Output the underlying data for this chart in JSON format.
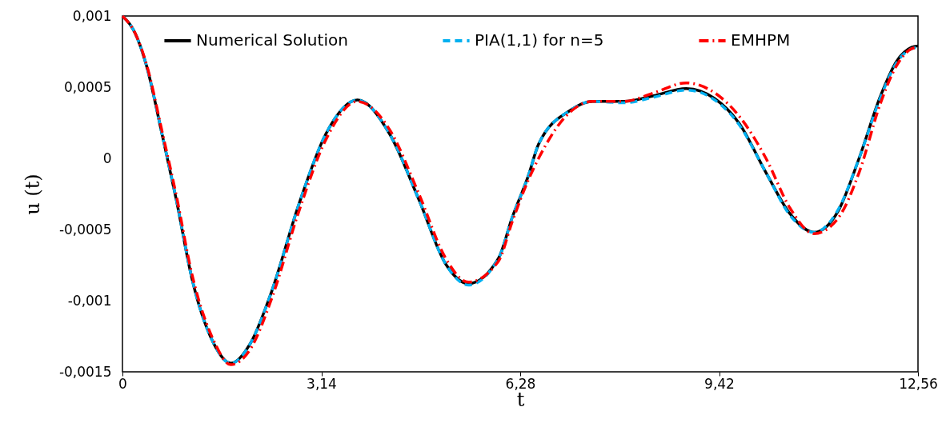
{
  "chart_data": {
    "type": "line",
    "xlabel": "t",
    "ylabel": "u (t)",
    "x": [
      0,
      0.21,
      0.38,
      0.63,
      0.85,
      1.1,
      1.44,
      1.71,
      2.02,
      2.36,
      2.78,
      3.21,
      3.71,
      4.22,
      4.68,
      5.1,
      5.46,
      5.94,
      6.15,
      6.41,
      6.57,
      7.08,
      7.42,
      7.92,
      8.39,
      8.9,
      9.35,
      9.73,
      10.16,
      10.54,
      10.92,
      11.3,
      11.63,
      11.97,
      12.22,
      12.46,
      12.56
    ],
    "series": [
      {
        "name": "Numerical Solution",
        "color": "#000000",
        "line_style": "solid",
        "values": [
          0.001,
          0.00087,
          0.00065,
          0.00016,
          -0.00029,
          -0.00085,
          -0.0013,
          -0.00144,
          -0.0013,
          -0.00093,
          -0.00033,
          0.00017,
          0.00041,
          0.00017,
          -0.00029,
          -0.00074,
          -0.00088,
          -0.0007,
          -0.00042,
          -0.00012,
          0.0001,
          0.00034,
          0.0004,
          0.0004,
          0.00044,
          0.00049,
          0.00042,
          0.00025,
          -0.0001,
          -0.00039,
          -0.00052,
          -0.00037,
          0.0,
          0.00044,
          0.00068,
          0.00078,
          0.00079
        ]
      },
      {
        "name": "PIA(1,1) for n=5",
        "color": "#00b0f0",
        "line_style": "dashed",
        "values": [
          0.001,
          0.00087,
          0.00065,
          0.00016,
          -0.00029,
          -0.00085,
          -0.0013,
          -0.00144,
          -0.0013,
          -0.00093,
          -0.00033,
          0.00017,
          0.00041,
          0.00017,
          -0.00029,
          -0.00074,
          -0.00089,
          -0.0007,
          -0.00042,
          -0.00012,
          0.0001,
          0.00034,
          0.0004,
          0.00039,
          0.00043,
          0.00048,
          0.00041,
          0.00024,
          -0.0001,
          -0.0004,
          -0.00052,
          -0.00036,
          0.0,
          0.00043,
          0.00067,
          0.00077,
          0.00078
        ]
      },
      {
        "name": "EMHPM",
        "color": "#ff0000",
        "line_style": "dashdot",
        "values": [
          0.001,
          0.00087,
          0.00066,
          0.00018,
          -0.00026,
          -0.00082,
          -0.00128,
          -0.00145,
          -0.00134,
          -0.00098,
          -0.00038,
          0.00013,
          0.0004,
          0.0002,
          -0.00025,
          -0.0007,
          -0.00087,
          -0.00072,
          -0.00045,
          -0.00015,
          0.0,
          0.00033,
          0.0004,
          0.0004,
          0.00046,
          0.00053,
          0.00046,
          0.0003,
          0.0,
          -0.00035,
          -0.00053,
          -0.00042,
          -0.0001,
          0.00039,
          0.00065,
          0.00077,
          0.00078
        ]
      }
    ],
    "xlim": [
      0,
      12.56
    ],
    "xticks": [
      0,
      {
        "value": 3.14,
        "label": "3,14"
      },
      {
        "value": 6.28,
        "label": "6,28"
      },
      {
        "value": 9.42,
        "label": "9,42"
      },
      {
        "value": 12.56,
        "label": "12,56"
      }
    ],
    "ylim": [
      -0.0015,
      0.001
    ],
    "yticks": [
      {
        "value": -0.0015,
        "label": "-0,0015"
      },
      {
        "value": -0.001,
        "label": "-0,001"
      },
      {
        "value": -0.0005,
        "label": "-0,0005"
      },
      0,
      {
        "value": 0.0005,
        "label": "0,0005"
      },
      {
        "value": 0.001,
        "label": "0,001"
      }
    ],
    "legend": "top",
    "grid": false,
    "marker": "none"
  }
}
